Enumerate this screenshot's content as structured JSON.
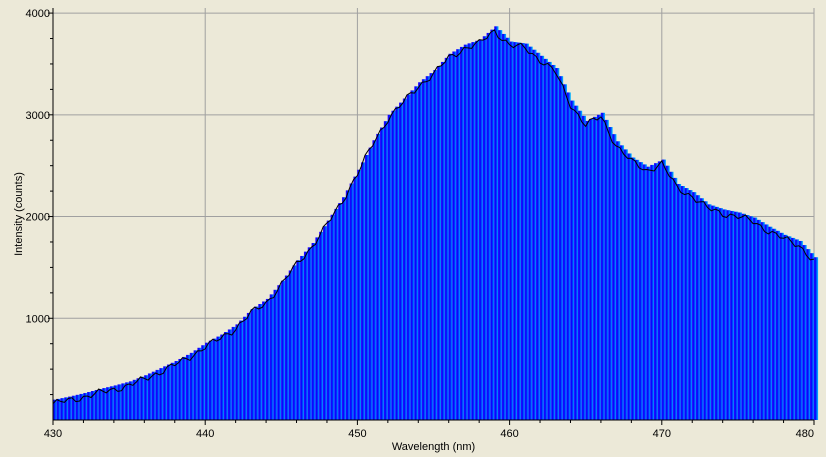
{
  "chart_data": {
    "type": "area",
    "xlabel": "Wavelength (nm)",
    "ylabel": "Intensity (counts)",
    "xlim": [
      430,
      480
    ],
    "ylim": [
      0,
      4050
    ],
    "x_ticks": [
      430,
      440,
      450,
      460,
      470,
      480
    ],
    "y_ticks": [
      1000,
      2000,
      3000,
      4000
    ],
    "x_tick_labels": [
      "430",
      "440",
      "450",
      "460",
      "470",
      "480"
    ],
    "y_tick_labels": [
      "1000",
      "2000",
      "3000",
      "4000"
    ],
    "grid": true,
    "legend": "none",
    "fill_gradient": [
      "#3a10ff",
      "#0000ff",
      "#0060ff",
      "#00c8ff"
    ],
    "line_color": "#000000",
    "plot_background": "#ece9d8",
    "grid_color": "#a0a0a0",
    "series": [
      {
        "values": [
          {
            "x": 430,
            "y": 160
          },
          {
            "x": 431,
            "y": 190
          },
          {
            "x": 432,
            "y": 225
          },
          {
            "x": 433,
            "y": 265
          },
          {
            "x": 434,
            "y": 300
          },
          {
            "x": 435,
            "y": 340
          },
          {
            "x": 436,
            "y": 400
          },
          {
            "x": 437,
            "y": 470
          },
          {
            "x": 438,
            "y": 540
          },
          {
            "x": 439,
            "y": 620
          },
          {
            "x": 440,
            "y": 720
          },
          {
            "x": 441,
            "y": 800
          },
          {
            "x": 442,
            "y": 900
          },
          {
            "x": 443,
            "y": 1050
          },
          {
            "x": 444,
            "y": 1150
          },
          {
            "x": 445,
            "y": 1330
          },
          {
            "x": 446,
            "y": 1530
          },
          {
            "x": 447,
            "y": 1700
          },
          {
            "x": 448,
            "y": 1920
          },
          {
            "x": 449,
            "y": 2150
          },
          {
            "x": 450,
            "y": 2420
          },
          {
            "x": 451,
            "y": 2710
          },
          {
            "x": 452,
            "y": 2960
          },
          {
            "x": 453,
            "y": 3120
          },
          {
            "x": 454,
            "y": 3280
          },
          {
            "x": 455,
            "y": 3400
          },
          {
            "x": 456,
            "y": 3560
          },
          {
            "x": 457,
            "y": 3650
          },
          {
            "x": 458,
            "y": 3700
          },
          {
            "x": 459,
            "y": 3830
          },
          {
            "x": 460,
            "y": 3680
          },
          {
            "x": 461,
            "y": 3660
          },
          {
            "x": 462,
            "y": 3540
          },
          {
            "x": 463,
            "y": 3420
          },
          {
            "x": 464,
            "y": 3100
          },
          {
            "x": 465,
            "y": 2900
          },
          {
            "x": 466,
            "y": 2980
          },
          {
            "x": 467,
            "y": 2700
          },
          {
            "x": 468,
            "y": 2540
          },
          {
            "x": 469,
            "y": 2450
          },
          {
            "x": 470,
            "y": 2520
          },
          {
            "x": 471,
            "y": 2280
          },
          {
            "x": 472,
            "y": 2200
          },
          {
            "x": 473,
            "y": 2080
          },
          {
            "x": 474,
            "y": 2030
          },
          {
            "x": 475,
            "y": 2000
          },
          {
            "x": 476,
            "y": 1950
          },
          {
            "x": 477,
            "y": 1860
          },
          {
            "x": 478,
            "y": 1780
          },
          {
            "x": 479,
            "y": 1720
          },
          {
            "x": 480,
            "y": 1560
          }
        ]
      }
    ]
  }
}
